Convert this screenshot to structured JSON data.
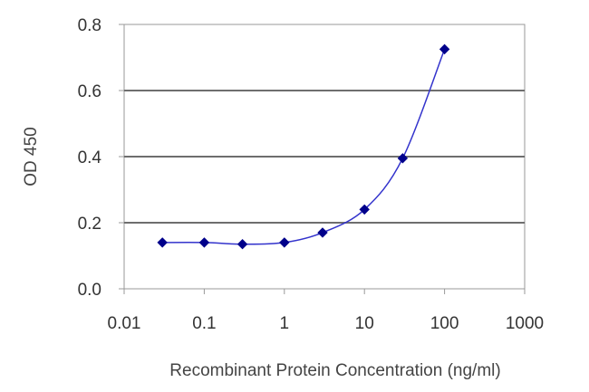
{
  "chart_data": {
    "type": "line",
    "xlabel": "Recombinant Protein Concentration (ng/ml)",
    "ylabel": "OD 450",
    "x_scale": "log",
    "xlim": [
      0.01,
      1000
    ],
    "ylim": [
      0.0,
      0.8
    ],
    "x_ticks": [
      "0.01",
      "0.1",
      "1",
      "10",
      "100",
      "1000"
    ],
    "y_ticks": [
      "0.0",
      "0.2",
      "0.4",
      "0.6",
      "0.8"
    ],
    "grid": "horizontal",
    "series": [
      {
        "x": [
          0.03,
          0.1,
          0.3,
          1,
          3,
          10,
          30,
          100
        ],
        "y": [
          0.14,
          0.14,
          0.135,
          0.14,
          0.17,
          0.24,
          0.395,
          0.725
        ],
        "color": "#00008B",
        "marker": "diamond"
      }
    ]
  }
}
